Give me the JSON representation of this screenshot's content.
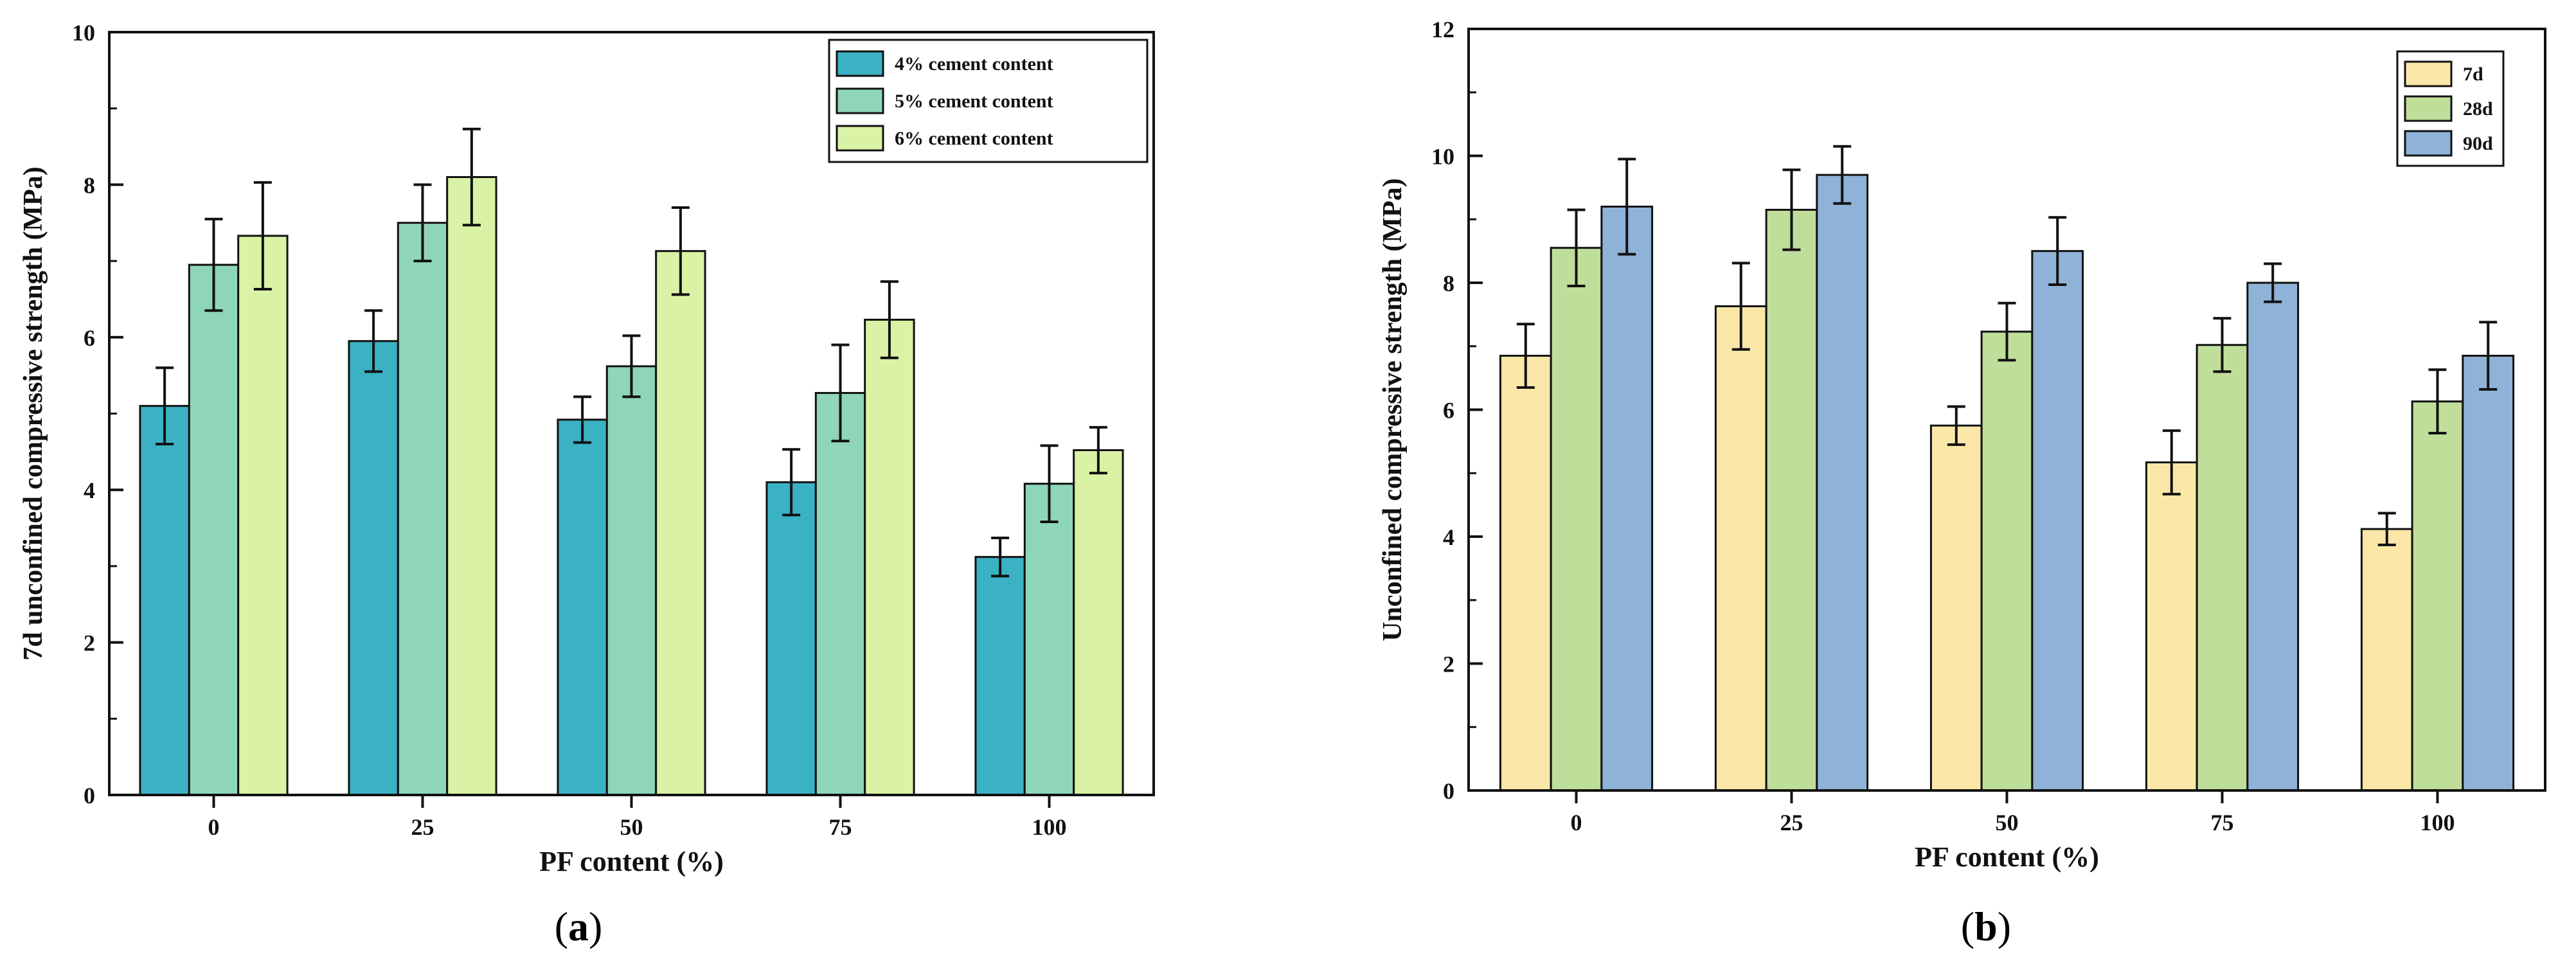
{
  "figure": {
    "panels": [
      {
        "prefix": "(",
        "letter": "a",
        "suffix": ")"
      },
      {
        "prefix": "(",
        "letter": "b",
        "suffix": ")"
      }
    ]
  },
  "chart_data": [
    {
      "type": "bar",
      "title": "",
      "xlabel": "PF content (%)",
      "ylabel": "7d unconfined compressive strength (MPa)",
      "categories": [
        "0",
        "25",
        "50",
        "75",
        "100"
      ],
      "ylim": [
        0,
        10
      ],
      "yticks": [
        0,
        2,
        4,
        6,
        8,
        10
      ],
      "legend_position": "top-right",
      "series": [
        {
          "name": "4% cement content",
          "color": "#3bb1c4",
          "values": [
            5.1,
            5.95,
            4.92,
            4.1,
            3.12
          ],
          "errors": [
            0.5,
            0.4,
            0.3,
            0.43,
            0.25
          ]
        },
        {
          "name": "5% cement content",
          "color": "#8fd6b9",
          "values": [
            6.95,
            7.5,
            5.62,
            5.27,
            4.08
          ],
          "errors": [
            0.6,
            0.5,
            0.4,
            0.63,
            0.5
          ]
        },
        {
          "name": "6% cement content",
          "color": "#d9f2a5",
          "values": [
            7.33,
            8.1,
            7.13,
            6.23,
            4.52
          ],
          "errors": [
            0.7,
            0.63,
            0.57,
            0.5,
            0.3
          ]
        }
      ]
    },
    {
      "type": "bar",
      "title": "",
      "xlabel": "PF content (%)",
      "ylabel": "Unconfined compressive strength (MPa)",
      "categories": [
        "0",
        "25",
        "50",
        "75",
        "100"
      ],
      "ylim": [
        0,
        12
      ],
      "yticks": [
        0,
        2,
        4,
        6,
        8,
        10,
        12
      ],
      "legend_position": "top-right",
      "series": [
        {
          "name": "7d",
          "color": "#fae7a8",
          "values": [
            6.85,
            7.63,
            5.75,
            5.17,
            4.12
          ],
          "errors": [
            0.5,
            0.68,
            0.3,
            0.5,
            0.25
          ]
        },
        {
          "name": "28d",
          "color": "#bfde9a",
          "values": [
            8.55,
            9.15,
            7.23,
            7.02,
            6.13
          ],
          "errors": [
            0.6,
            0.63,
            0.45,
            0.42,
            0.5
          ]
        },
        {
          "name": "90d",
          "color": "#8fb3d8",
          "values": [
            9.2,
            9.7,
            8.5,
            8.0,
            6.85
          ],
          "errors": [
            0.75,
            0.45,
            0.53,
            0.3,
            0.53
          ]
        }
      ]
    }
  ]
}
